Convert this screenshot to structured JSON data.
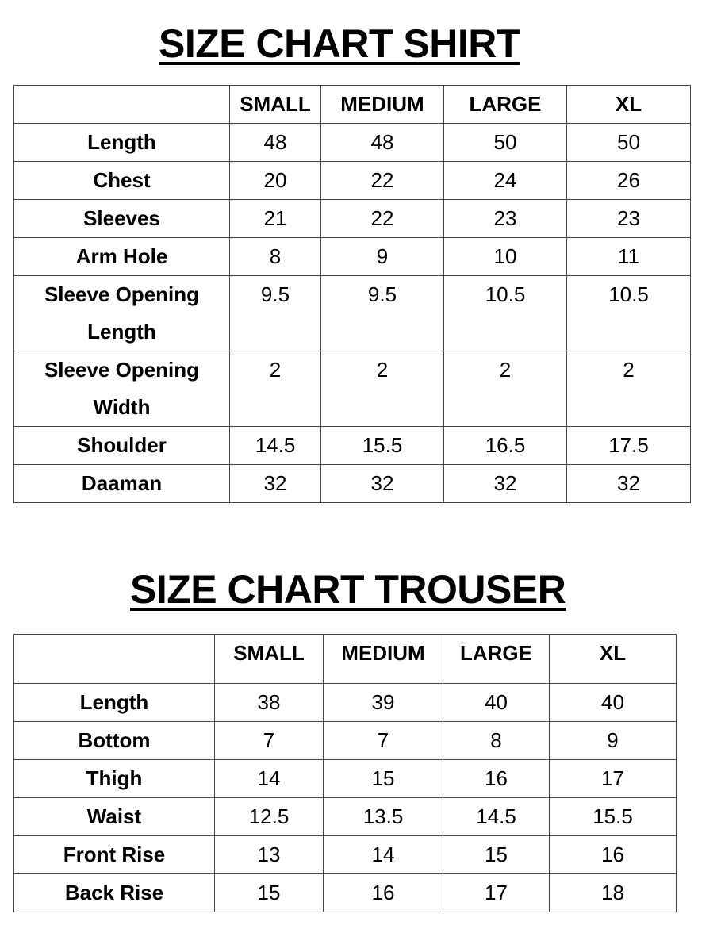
{
  "shirt": {
    "title": "SIZE CHART SHIRT",
    "headers": [
      "",
      "SMALL",
      "MEDIUM",
      "LARGE",
      "XL"
    ],
    "rows": [
      {
        "label": "Length",
        "values": [
          "48",
          "48",
          "50",
          "50"
        ]
      },
      {
        "label": "Chest",
        "values": [
          "20",
          "22",
          "24",
          "26"
        ]
      },
      {
        "label": "Sleeves",
        "values": [
          "21",
          "22",
          "23",
          "23"
        ]
      },
      {
        "label": "Arm Hole",
        "values": [
          "8",
          "9",
          "10",
          "11"
        ]
      },
      {
        "label": "Sleeve Opening Length",
        "values": [
          "9.5",
          "9.5",
          "10.5",
          "10.5"
        ]
      },
      {
        "label": "Sleeve Opening Width",
        "values": [
          "2",
          "2",
          "2",
          "2"
        ]
      },
      {
        "label": "Shoulder",
        "values": [
          "14.5",
          "15.5",
          "16.5",
          "17.5"
        ]
      },
      {
        "label": "Daaman",
        "values": [
          "32",
          "32",
          "32",
          "32"
        ]
      }
    ]
  },
  "trouser": {
    "title": "SIZE CHART TROUSER",
    "headers": [
      "",
      "SMALL",
      "MEDIUM",
      "LARGE",
      "XL"
    ],
    "rows": [
      {
        "label": "Length",
        "values": [
          "38",
          "39",
          "40",
          "40"
        ]
      },
      {
        "label": "Bottom",
        "values": [
          "7",
          "7",
          "8",
          "9"
        ]
      },
      {
        "label": "Thigh",
        "values": [
          "14",
          "15",
          "16",
          "17"
        ]
      },
      {
        "label": "Waist",
        "values": [
          "12.5",
          "13.5",
          "14.5",
          "15.5"
        ]
      },
      {
        "label": "Front Rise",
        "values": [
          "13",
          "14",
          "15",
          "16"
        ]
      },
      {
        "label": "Back Rise",
        "values": [
          "15",
          "16",
          "17",
          "18"
        ]
      }
    ]
  }
}
